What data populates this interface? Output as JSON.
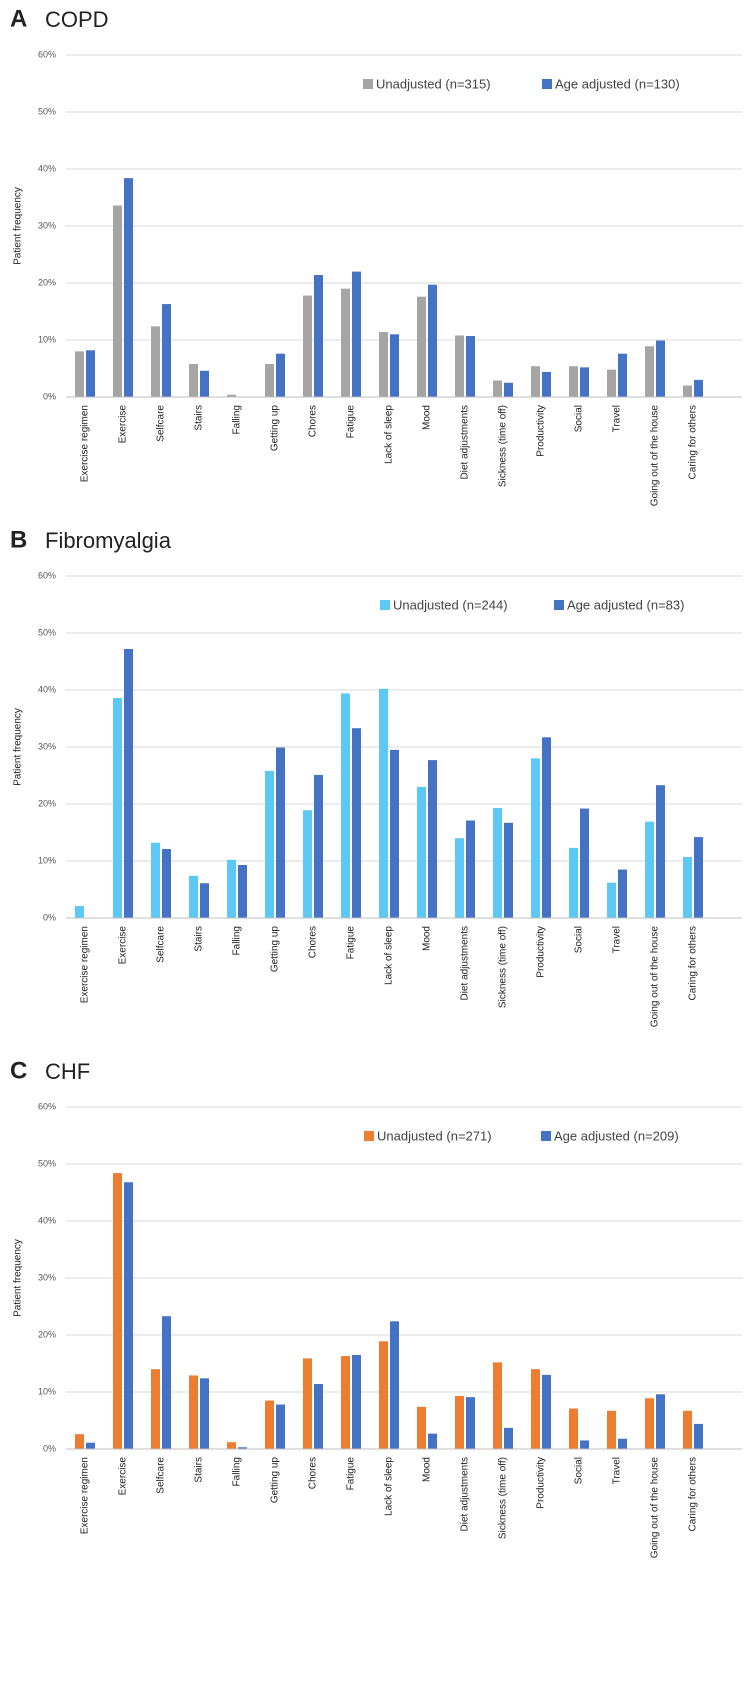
{
  "chart_data": [
    {
      "type": "bar",
      "panel": "A",
      "title": "COPD",
      "y_label": "Patient frequency",
      "categories": [
        "Exercise regimen",
        "Exercise",
        "Selfcare",
        "Stairs",
        "Falling",
        "Getting up",
        "Chores",
        "Fatigue",
        "Lack of sleep",
        "Mood",
        "Diet adjustments",
        "Sickness (time off)",
        "Productivity",
        "Social",
        "Travel",
        "Going out of the house",
        "Caring for others"
      ],
      "series": [
        {
          "name": "Unadjusted (n=315)",
          "color": "#a5a5a5",
          "values": [
            8,
            33.6,
            12.4,
            5.8,
            0.4,
            5.8,
            17.8,
            19,
            11.4,
            17.6,
            10.8,
            2.9,
            5.4,
            5.4,
            4.8,
            8.9,
            2
          ]
        },
        {
          "name": "Age adjusted (n=130)",
          "color": "#4472c4",
          "values": [
            8.2,
            38.4,
            16.3,
            4.6,
            0,
            7.6,
            21.4,
            22,
            11,
            19.7,
            10.7,
            2.5,
            4.4,
            5.2,
            7.6,
            9.9,
            3
          ]
        }
      ],
      "ylim": [
        0,
        60
      ],
      "yticks": [
        {
          "value": 0,
          "label": "0%"
        },
        {
          "value": 10,
          "label": "10%"
        },
        {
          "value": 20,
          "label": "20%"
        },
        {
          "value": 30,
          "label": "30%"
        },
        {
          "value": 40,
          "label": "40%"
        },
        {
          "value": 50,
          "label": "50%"
        },
        {
          "value": 60,
          "label": "60%"
        }
      ],
      "grid": true
    },
    {
      "type": "bar",
      "panel": "B",
      "title": "Fibromyalgia",
      "y_label": "Patient frequency",
      "categories": [
        "Exercise regimen",
        "Exercise",
        "Selfcare",
        "Stairs",
        "Falling",
        "Getting up",
        "Chores",
        "Fatigue",
        "Lack of sleep",
        "Mood",
        "Diet adjustments",
        "Sickness (time off)",
        "Productivity",
        "Social",
        "Travel",
        "Going out of the house",
        "Caring for others"
      ],
      "series": [
        {
          "name": "Unadjusted (n=244)",
          "color": "#5bc8f5",
          "values": [
            2.1,
            38.6,
            13.2,
            7.4,
            10.2,
            25.8,
            18.9,
            39.4,
            40.2,
            23,
            14,
            19.3,
            28,
            12.3,
            6.2,
            16.9,
            10.7
          ]
        },
        {
          "name": "Age adjusted (n=83)",
          "color": "#4472c4",
          "values": [
            0,
            47.2,
            12.1,
            6.1,
            9.3,
            29.9,
            25.1,
            33.3,
            29.5,
            27.7,
            17.1,
            16.7,
            31.7,
            19.2,
            8.5,
            23.3,
            14.2
          ]
        }
      ],
      "ylim": [
        0,
        60
      ],
      "yticks": [
        {
          "value": 0,
          "label": "0%"
        },
        {
          "value": 10,
          "label": "10%"
        },
        {
          "value": 20,
          "label": "20%"
        },
        {
          "value": 30,
          "label": "30%"
        },
        {
          "value": 40,
          "label": "40%"
        },
        {
          "value": 50,
          "label": "50%"
        },
        {
          "value": 60,
          "label": "60%"
        }
      ],
      "grid": true
    },
    {
      "type": "bar",
      "panel": "C",
      "title": "CHF",
      "y_label": "Patient frequency",
      "categories": [
        "Exercise regimen",
        "Exercise",
        "Selfcare",
        "Stairs",
        "Falling",
        "Getting up",
        "Chores",
        "Fatigue",
        "Lack of sleep",
        "Mood",
        "Diet adjustments",
        "Sickness (time off)",
        "Productivity",
        "Social",
        "Travel",
        "Going out of the house",
        "Caring for others"
      ],
      "series": [
        {
          "name": "Unadjusted (n=271)",
          "color": "#ed7d31",
          "values": [
            2.6,
            48.4,
            14,
            12.9,
            1.2,
            8.5,
            15.9,
            16.3,
            18.9,
            7.4,
            9.3,
            15.2,
            14,
            7.1,
            6.7,
            8.9,
            6.7
          ]
        },
        {
          "name": "Age adjusted (n=209)",
          "color": "#4472c4",
          "values": [
            1.1,
            46.8,
            23.3,
            12.4,
            0.3,
            7.8,
            11.4,
            16.5,
            22.4,
            2.7,
            9.1,
            3.7,
            13,
            1.5,
            1.8,
            9.6,
            4.4
          ]
        }
      ],
      "ylim": [
        0,
        60
      ],
      "yticks": [
        {
          "value": 0,
          "label": "0%"
        },
        {
          "value": 10,
          "label": "10%"
        },
        {
          "value": 20,
          "label": "20%"
        },
        {
          "value": 30,
          "label": "30%"
        },
        {
          "value": 40,
          "label": "40%"
        },
        {
          "value": 50,
          "label": "50%"
        },
        {
          "value": 60,
          "label": "60%"
        }
      ],
      "grid": true
    }
  ]
}
